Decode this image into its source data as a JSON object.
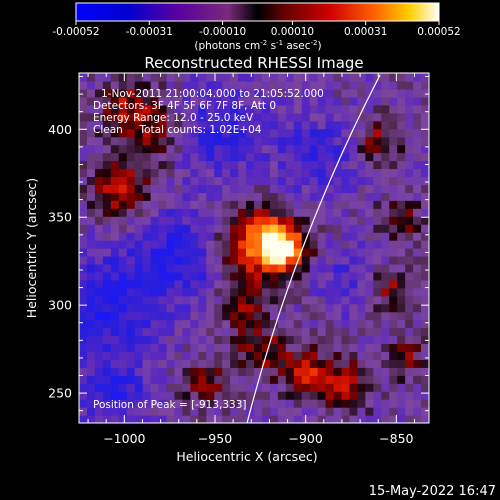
{
  "chart_data": {
    "type": "heatmap",
    "title": "Reconstructed RHESSI Image",
    "xlabel": "Heliocentric X (arcsec)",
    "ylabel": "Heliocentric Y (arcsec)",
    "xlim": [
      -1025,
      -832
    ],
    "ylim": [
      233,
      432
    ],
    "xticks": [
      -1000,
      -950,
      -900,
      -850
    ],
    "yticks": [
      250,
      300,
      350,
      400
    ],
    "colorbar": {
      "min": -0.00052,
      "max": 0.00052,
      "ticks": [
        "-0.00052",
        "-0.00031",
        "-0.00010",
        "0.00010",
        "0.00031",
        "0.00052"
      ],
      "tick_values": [
        -0.00052,
        -0.00031,
        -0.0001,
        0.0001,
        0.00031,
        0.00052
      ],
      "label_main": "(photons cm",
      "label_sup1": "-2",
      "label_mid1": " s",
      "label_sup2": "-1",
      "label_mid2": " asec",
      "label_sup3": "-2",
      "label_end": ")"
    },
    "info_lines": [
      "1-Nov-2011 21:00:04.000 to 21:05:52.000",
      "Detectors: 3F 4F 5F 6F 7F 8F, Att 0",
      "Energy Range: 12.0 - 25.0 keV",
      "Clean     Total counts: 1.02E+04"
    ],
    "peak_label": "Position of Peak = [-913,333]",
    "peak": {
      "x": -913,
      "y": 333
    },
    "sources": [
      {
        "x": -913,
        "y": 333,
        "amp": 1.0,
        "sigma": 9
      },
      {
        "x": -928,
        "y": 336,
        "amp": 0.75,
        "sigma": 15
      },
      {
        "x": -1003,
        "y": 366,
        "amp": 0.55,
        "sigma": 12
      },
      {
        "x": -985,
        "y": 400,
        "amp": 0.45,
        "sigma": 14
      },
      {
        "x": -1000,
        "y": 415,
        "amp": 0.35,
        "sigma": 10
      },
      {
        "x": -935,
        "y": 300,
        "amp": 0.4,
        "sigma": 9
      },
      {
        "x": -925,
        "y": 275,
        "amp": 0.45,
        "sigma": 10
      },
      {
        "x": -900,
        "y": 262,
        "amp": 0.6,
        "sigma": 9
      },
      {
        "x": -878,
        "y": 255,
        "amp": 0.5,
        "sigma": 10
      },
      {
        "x": -955,
        "y": 255,
        "amp": 0.4,
        "sigma": 9
      },
      {
        "x": -855,
        "y": 310,
        "amp": 0.45,
        "sigma": 9
      },
      {
        "x": -848,
        "y": 350,
        "amp": 0.4,
        "sigma": 8
      },
      {
        "x": -860,
        "y": 395,
        "amp": 0.4,
        "sigma": 9
      },
      {
        "x": -845,
        "y": 270,
        "amp": 0.35,
        "sigma": 8
      },
      {
        "x": -970,
        "y": 330,
        "amp": -0.45,
        "sigma": 18
      },
      {
        "x": -1010,
        "y": 300,
        "amp": -0.5,
        "sigma": 20
      },
      {
        "x": -950,
        "y": 400,
        "amp": -0.4,
        "sigma": 18
      },
      {
        "x": -895,
        "y": 385,
        "amp": -0.35,
        "sigma": 16
      },
      {
        "x": -1005,
        "y": 250,
        "amp": -0.4,
        "sigma": 14
      },
      {
        "x": -875,
        "y": 315,
        "amp": -0.3,
        "sigma": 12
      }
    ],
    "limb": {
      "center": [
        0,
        0
      ],
      "radius_arcsec": 961
    },
    "grid": false,
    "footer_date": "15-May-2022 16:47"
  }
}
